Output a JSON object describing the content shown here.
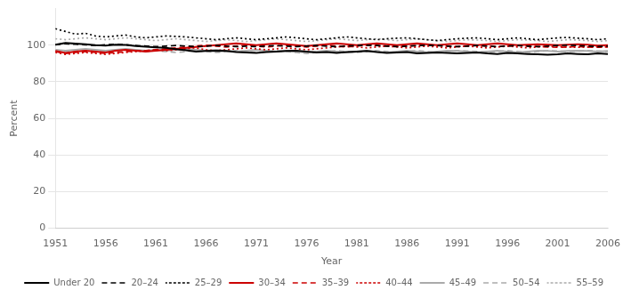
{
  "chart_data": {
    "type": "line",
    "xlabel": "Year",
    "ylabel": "Percent",
    "x": [
      1951,
      1952,
      1953,
      1954,
      1955,
      1956,
      1957,
      1958,
      1959,
      1960,
      1961,
      1962,
      1963,
      1964,
      1965,
      1966,
      1967,
      1968,
      1969,
      1970,
      1971,
      1972,
      1973,
      1974,
      1975,
      1976,
      1977,
      1978,
      1979,
      1980,
      1981,
      1982,
      1983,
      1984,
      1985,
      1986,
      1987,
      1988,
      1989,
      1990,
      1991,
      1992,
      1993,
      1994,
      1995,
      1996,
      1997,
      1998,
      1999,
      2000,
      2001,
      2002,
      2003,
      2004,
      2005,
      2006
    ],
    "xlim": [
      1951,
      2006
    ],
    "xticks": [
      1951,
      1956,
      1961,
      1966,
      1971,
      1976,
      1981,
      1986,
      1991,
      1996,
      2001,
      2006
    ],
    "ylim": [
      0,
      120
    ],
    "yticks": [
      0,
      20,
      40,
      60,
      80,
      100
    ],
    "grid": "y",
    "legend": "lower right",
    "series": [
      {
        "name": "Under 20",
        "color": "#000000",
        "line_style": "solid",
        "values": [
          100.3,
          101.2,
          100.8,
          100.5,
          100.0,
          99.8,
          100.2,
          100.1,
          99.5,
          99.2,
          98.8,
          98.5,
          97.8,
          97.2,
          96.5,
          96.8,
          97.0,
          96.8,
          96.2,
          96.0,
          95.8,
          96.2,
          96.5,
          96.8,
          97.0,
          96.5,
          96.0,
          96.2,
          95.8,
          96.2,
          96.5,
          96.8,
          96.2,
          95.8,
          96.0,
          96.2,
          95.5,
          95.8,
          96.0,
          95.8,
          95.5,
          95.8,
          96.0,
          95.5,
          95.2,
          95.8,
          95.5,
          95.2,
          95.0,
          94.8,
          95.0,
          95.5,
          95.2,
          95.0,
          95.5,
          95.2
        ]
      },
      {
        "name": "20–24",
        "color": "#000000",
        "line_style": "dashed",
        "values": [
          100.2,
          100.8,
          100.5,
          100.2,
          99.8,
          100.2,
          100.5,
          100.2,
          99.8,
          99.5,
          99.2,
          99.5,
          99.8,
          99.5,
          99.2,
          99.5,
          99.8,
          99.5,
          99.2,
          99.5,
          99.2,
          99.5,
          99.8,
          99.5,
          99.2,
          99.5,
          99.8,
          99.5,
          99.2,
          99.5,
          99.8,
          100.0,
          99.8,
          99.5,
          99.2,
          99.5,
          99.8,
          100.0,
          99.8,
          99.5,
          99.2,
          99.5,
          99.8,
          99.5,
          99.2,
          99.5,
          99.8,
          99.5,
          99.2,
          99.5,
          99.8,
          100.0,
          99.8,
          99.5,
          99.2,
          99.5
        ]
      },
      {
        "name": "25–29",
        "color": "#000000",
        "line_style": "dotted",
        "values": [
          109.0,
          107.5,
          106.0,
          106.5,
          105.0,
          104.5,
          105.0,
          105.5,
          104.5,
          104.0,
          104.5,
          105.0,
          104.8,
          104.5,
          104.0,
          103.5,
          103.0,
          103.5,
          104.0,
          103.5,
          103.0,
          103.5,
          104.0,
          104.5,
          104.0,
          103.5,
          103.0,
          103.5,
          104.0,
          104.5,
          104.0,
          103.5,
          103.0,
          103.5,
          103.8,
          104.0,
          103.5,
          103.0,
          102.5,
          103.0,
          103.5,
          103.8,
          104.0,
          103.5,
          103.0,
          103.5,
          104.0,
          103.5,
          103.0,
          103.5,
          104.0,
          104.2,
          103.8,
          103.5,
          103.0,
          103.5
        ]
      },
      {
        "name": "30–34",
        "color": "#cc0000",
        "line_style": "solid",
        "values": [
          96.8,
          95.8,
          96.5,
          97.0,
          96.5,
          96.0,
          97.0,
          97.5,
          97.0,
          96.5,
          97.0,
          97.5,
          98.0,
          98.5,
          99.0,
          99.5,
          100.0,
          100.5,
          101.0,
          100.5,
          100.0,
          100.5,
          101.0,
          100.5,
          100.0,
          99.5,
          100.0,
          100.5,
          101.0,
          100.5,
          100.0,
          100.5,
          101.0,
          100.5,
          100.0,
          100.5,
          101.0,
          100.5,
          100.0,
          100.5,
          101.0,
          100.5,
          100.0,
          100.5,
          101.0,
          100.5,
          100.0,
          100.2,
          100.5,
          100.2,
          100.0,
          100.2,
          100.5,
          100.2,
          99.8,
          100.0
        ]
      },
      {
        "name": "35–39",
        "color": "#cc0000",
        "line_style": "dashed",
        "values": [
          96.5,
          95.5,
          96.0,
          96.5,
          96.0,
          95.5,
          96.0,
          96.5,
          96.8,
          97.0,
          97.5,
          98.0,
          98.5,
          99.0,
          99.5,
          100.0,
          99.5,
          99.0,
          99.5,
          100.0,
          99.5,
          99.0,
          99.5,
          100.0,
          99.5,
          99.0,
          99.5,
          100.0,
          99.5,
          99.0,
          99.5,
          100.0,
          99.8,
          99.5,
          99.2,
          99.5,
          99.8,
          100.0,
          99.8,
          99.5,
          99.2,
          99.5,
          99.8,
          99.5,
          99.2,
          99.5,
          99.8,
          99.5,
          99.2,
          99.0,
          98.8,
          99.0,
          99.2,
          99.0,
          98.8,
          99.0
        ]
      },
      {
        "name": "40–44",
        "color": "#cc0000",
        "line_style": "dotted",
        "values": [
          96.0,
          95.0,
          95.5,
          96.0,
          95.5,
          95.0,
          95.5,
          96.0,
          96.5,
          97.0,
          97.5,
          97.0,
          97.5,
          98.0,
          98.5,
          97.5,
          97.0,
          97.5,
          98.0,
          98.5,
          98.0,
          97.5,
          98.0,
          98.5,
          98.0,
          97.5,
          98.0,
          98.5,
          99.0,
          99.5,
          99.0,
          98.5,
          99.0,
          99.5,
          99.0,
          98.5,
          99.0,
          99.5,
          99.0,
          98.5,
          99.0,
          99.5,
          99.0,
          98.5,
          99.0,
          99.5,
          99.0,
          98.5,
          99.0,
          99.5,
          99.2,
          99.0,
          98.8,
          99.0,
          99.2,
          99.0
        ]
      },
      {
        "name": "45–49",
        "color": "#aaaaaa",
        "line_style": "solid",
        "values": [
          97.5,
          97.0,
          97.5,
          98.0,
          97.5,
          97.0,
          97.5,
          98.0,
          97.5,
          97.0,
          97.5,
          97.0,
          97.5,
          98.0,
          97.5,
          97.0,
          97.5,
          97.0,
          96.5,
          97.0,
          97.5,
          97.0,
          96.5,
          97.0,
          96.5,
          96.0,
          96.5,
          97.0,
          96.5,
          96.0,
          96.5,
          97.0,
          96.5,
          96.0,
          96.5,
          97.0,
          96.5,
          96.0,
          96.5,
          97.0,
          96.8,
          96.5,
          96.0,
          96.5,
          97.0,
          96.5,
          96.0,
          96.5,
          97.0,
          96.8,
          96.5,
          96.8,
          97.0,
          96.8,
          96.5,
          96.8
        ]
      },
      {
        "name": "50–54",
        "color": "#aaaaaa",
        "line_style": "dashed",
        "values": [
          97.0,
          96.5,
          97.0,
          97.5,
          97.0,
          96.5,
          97.0,
          97.5,
          97.0,
          96.5,
          97.0,
          96.5,
          96.0,
          96.5,
          97.0,
          96.5,
          96.0,
          96.5,
          97.0,
          96.5,
          96.0,
          96.5,
          97.0,
          96.5,
          96.0,
          95.5,
          96.0,
          96.5,
          97.0,
          96.5,
          96.0,
          96.5,
          97.0,
          96.5,
          96.0,
          96.5,
          97.0,
          96.5,
          96.0,
          96.5,
          97.0,
          96.8,
          96.5,
          96.0,
          96.5,
          97.0,
          96.5,
          96.0,
          96.5,
          97.0,
          96.8,
          96.5,
          96.8,
          97.0,
          96.8,
          96.5
        ]
      },
      {
        "name": "55–59",
        "color": "#aaaaaa",
        "line_style": "dotted",
        "values": [
          103.5,
          103.0,
          103.5,
          104.0,
          103.5,
          103.0,
          103.5,
          104.0,
          103.5,
          103.0,
          102.5,
          103.0,
          103.5,
          103.0,
          102.5,
          102.0,
          102.5,
          103.0,
          102.5,
          102.0,
          102.5,
          103.0,
          103.5,
          103.0,
          102.5,
          102.0,
          102.5,
          103.0,
          103.5,
          103.0,
          102.5,
          103.0,
          103.5,
          103.0,
          102.5,
          103.0,
          103.5,
          103.0,
          102.5,
          102.0,
          102.5,
          103.0,
          102.8,
          102.5,
          102.0,
          102.5,
          103.0,
          102.8,
          102.5,
          102.0,
          102.5,
          103.0,
          102.8,
          102.5,
          102.0,
          102.5
        ]
      }
    ]
  }
}
